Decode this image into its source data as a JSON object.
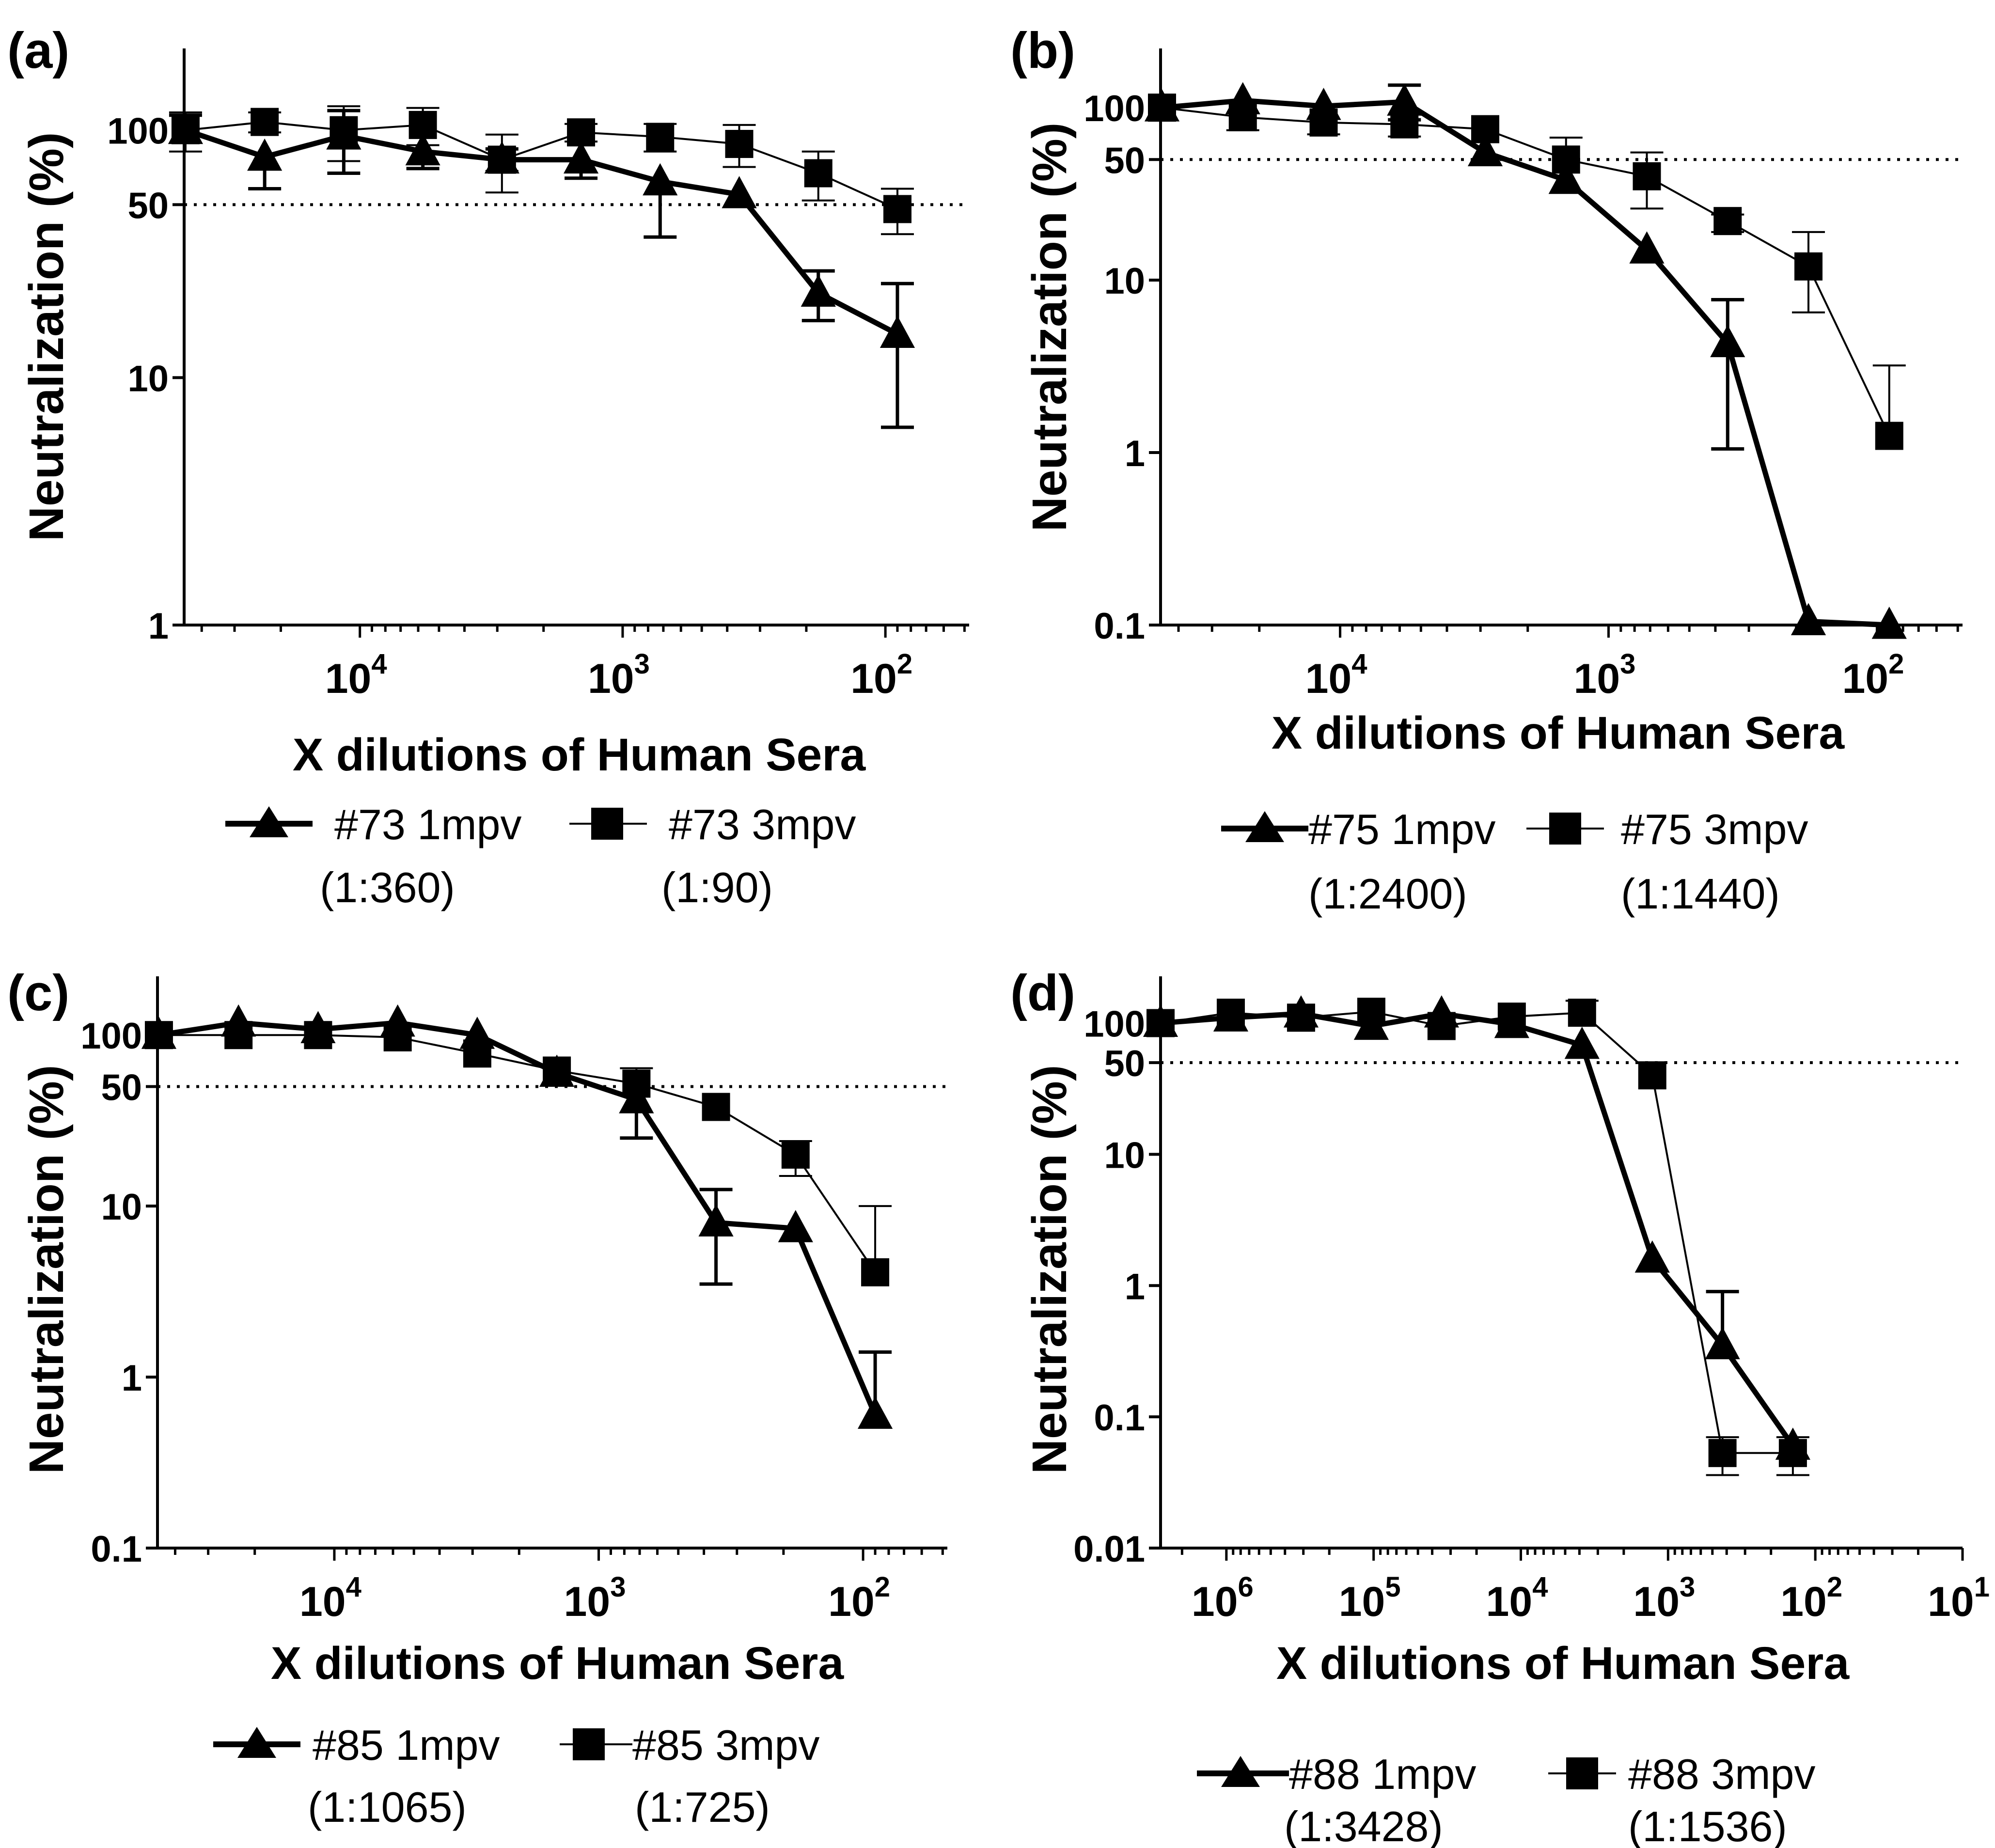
{
  "chart_data": [
    {
      "type": "line",
      "panel_label": "(a)",
      "xscale": "log-reversed",
      "yscale": "log",
      "xlim": [
        46656,
        48
      ],
      "ylim": [
        1,
        200
      ],
      "xticks": [
        {
          "value": 10000,
          "base": "10",
          "exp": "4"
        },
        {
          "value": 1000,
          "base": "10",
          "exp": "3"
        },
        {
          "value": 100,
          "base": "10",
          "exp": "2"
        }
      ],
      "yticks": [
        {
          "value": 1,
          "label": "1"
        },
        {
          "value": 10,
          "label": "10"
        },
        {
          "value": 50,
          "label": "50"
        },
        {
          "value": 100,
          "label": "100"
        }
      ],
      "reference_line": 50,
      "xlabel": "X dilutions of  Human Sera",
      "ylabel": "Neutralization (%)",
      "series": [
        {
          "name": "#73 1mpv",
          "note": "(1:360)",
          "marker": "triangle",
          "line_weight": "thick",
          "x": [
            46080,
            23040,
            11520,
            5760,
            2880,
            1440,
            720,
            360,
            180,
            90
          ],
          "y": [
            100,
            78,
            95,
            82,
            76,
            76,
            62,
            55,
            22,
            15
          ],
          "err": [
            18,
            20,
            28,
            12,
            8,
            12,
            25,
            null,
            5,
            9
          ]
        },
        {
          "name": "#73 3mpv",
          "note": "(1:90)",
          "marker": "square",
          "line_weight": "thin",
          "x": [
            46080,
            23040,
            11520,
            5760,
            2880,
            1440,
            720,
            360,
            180,
            90
          ],
          "y": [
            100,
            108,
            100,
            105,
            76,
            98,
            94,
            88,
            67,
            48
          ],
          "err": [
            18,
            10,
            25,
            18,
            20,
            8,
            12,
            17,
            15,
            10
          ]
        }
      ],
      "error_bar_tip": [
        {
          "series": "#73 1mpv",
          "x": 46080,
          "hi": 115
        },
        {
          "series": "#73 1mpv",
          "x": 23040,
          "lo": 58
        },
        {
          "series": "#73 1mpv",
          "x": 11520,
          "lo": 67,
          "hi": 120
        },
        {
          "series": "#73 1mpv",
          "x": 5760,
          "lo": 70
        },
        {
          "series": "#73 1mpv",
          "x": 1440,
          "lo": 64
        },
        {
          "series": "#73 1mpv",
          "x": 720,
          "lo": 37
        },
        {
          "series": "#73 1mpv",
          "x": 180,
          "lo": 17,
          "hi": 27
        },
        {
          "series": "#73 1mpv",
          "x": 90,
          "lo": 6.3,
          "hi": 24
        }
      ]
    },
    {
      "type": "line",
      "panel_label": "(b)",
      "xscale": "log-reversed",
      "yscale": "log",
      "xlim": [
        46656,
        48
      ],
      "ylim": [
        0.1,
        200
      ],
      "xticks": [
        {
          "value": 10000,
          "base": "10",
          "exp": "4"
        },
        {
          "value": 1000,
          "base": "10",
          "exp": "3"
        },
        {
          "value": 100,
          "base": "10",
          "exp": "2"
        }
      ],
      "yticks": [
        {
          "value": 0.1,
          "label": "0.1"
        },
        {
          "value": 1,
          "label": "1"
        },
        {
          "value": 10,
          "label": "10"
        },
        {
          "value": 50,
          "label": "50"
        },
        {
          "value": 100,
          "label": "100"
        }
      ],
      "reference_line": 50,
      "xlabel": "X dilutions of  Human Sera",
      "ylabel": "Neutralization (%)",
      "series": [
        {
          "name": "#75 1mpv",
          "note": "(1:2400)",
          "marker": "triangle",
          "line_weight": "thick",
          "x": [
            46080,
            23040,
            11520,
            5760,
            2880,
            1440,
            720,
            360,
            180,
            90
          ],
          "y": [
            100,
            110,
            102,
            108,
            55,
            38,
            15,
            4.3,
            0.105,
            0.1
          ]
        },
        {
          "name": "#75 3mpv",
          "note": "(1:1440)",
          "marker": "square",
          "line_weight": "thin",
          "x": [
            46080,
            23040,
            11520,
            5760,
            2880,
            1440,
            720,
            360,
            180,
            90
          ],
          "y": [
            100,
            88,
            82,
            80,
            75,
            50,
            40,
            22,
            12,
            1.25
          ]
        }
      ],
      "error_bars": [
        {
          "series": "#75 1mpv",
          "x": 5760,
          "lo": 85,
          "hi": 135
        },
        {
          "series": "#75 1mpv",
          "x": 360,
          "lo": 1.05,
          "hi": 7.7
        },
        {
          "series": "#75 3mpv",
          "x": 23040,
          "lo": 74
        },
        {
          "series": "#75 3mpv",
          "x": 11520,
          "lo": 70
        },
        {
          "series": "#75 3mpv",
          "x": 5760,
          "lo": 68
        },
        {
          "series": "#75 3mpv",
          "x": 1440,
          "hi": 67
        },
        {
          "series": "#75 3mpv",
          "x": 720,
          "lo": 26,
          "hi": 55
        },
        {
          "series": "#75 3mpv",
          "x": 360,
          "lo": 19,
          "hi": 24
        },
        {
          "series": "#75 3mpv",
          "x": 180,
          "lo": 6.5,
          "hi": 19
        },
        {
          "series": "#75 3mpv",
          "x": 90,
          "hi": 3.2
        }
      ]
    },
    {
      "type": "line",
      "panel_label": "(c)",
      "xscale": "log-reversed",
      "yscale": "log",
      "xlim": [
        46656,
        48
      ],
      "ylim": [
        0.1,
        200
      ],
      "xticks": [
        {
          "value": 10000,
          "base": "10",
          "exp": "4"
        },
        {
          "value": 1000,
          "base": "10",
          "exp": "3"
        },
        {
          "value": 100,
          "base": "10",
          "exp": "2"
        }
      ],
      "yticks": [
        {
          "value": 0.1,
          "label": "0.1"
        },
        {
          "value": 1,
          "label": "1"
        },
        {
          "value": 10,
          "label": "10"
        },
        {
          "value": 50,
          "label": "50"
        },
        {
          "value": 100,
          "label": "100"
        }
      ],
      "reference_line": 50,
      "xlabel": "X dilutions of  Human Sera",
      "ylabel": "Neutralization (%)",
      "series": [
        {
          "name": "#85 1mpv",
          "note": "(1:1065)",
          "marker": "triangle",
          "line_weight": "thick",
          "x": [
            46080,
            23040,
            11520,
            5760,
            2880,
            1440,
            720,
            360,
            180,
            90
          ],
          "y": [
            100,
            118,
            108,
            118,
            100,
            60,
            42,
            8,
            7.4,
            0.6
          ]
        },
        {
          "name": "#85 3mpv",
          "note": "(1:725)",
          "marker": "square",
          "line_weight": "thin",
          "x": [
            46080,
            23040,
            11520,
            5760,
            2880,
            1440,
            720,
            360,
            180,
            90
          ],
          "y": [
            100,
            100,
            100,
            97,
            78,
            62,
            52,
            38,
            20,
            4.1
          ]
        }
      ],
      "error_bars": [
        {
          "series": "#85 1mpv",
          "x": 720,
          "lo": 25
        },
        {
          "series": "#85 1mpv",
          "x": 360,
          "lo": 3.5,
          "hi": 12.5
        },
        {
          "series": "#85 1mpv",
          "x": 90,
          "hi": 1.4
        },
        {
          "series": "#85 3mpv",
          "x": 720,
          "hi": 64
        },
        {
          "series": "#85 3mpv",
          "x": 180,
          "lo": 15,
          "hi": 24
        },
        {
          "series": "#85 3mpv",
          "x": 90,
          "hi": 10
        }
      ]
    },
    {
      "type": "line",
      "panel_label": "(d)",
      "xscale": "log-reversed",
      "yscale": "log",
      "xlim": [
        2799360,
        10
      ],
      "ylim": [
        0.01,
        200
      ],
      "xticks": [
        {
          "value": 1000000,
          "base": "10",
          "exp": "6"
        },
        {
          "value": 100000,
          "base": "10",
          "exp": "5"
        },
        {
          "value": 10000,
          "base": "10",
          "exp": "4"
        },
        {
          "value": 1000,
          "base": "10",
          "exp": "3"
        },
        {
          "value": 100,
          "base": "10",
          "exp": "2"
        },
        {
          "value": 10,
          "base": "10",
          "exp": "1"
        }
      ],
      "yticks": [
        {
          "value": 0.01,
          "label": "0.01"
        },
        {
          "value": 0.1,
          "label": "0.1"
        },
        {
          "value": 1,
          "label": "1"
        },
        {
          "value": 10,
          "label": "10"
        },
        {
          "value": 50,
          "label": "50"
        },
        {
          "value": 100,
          "label": "100"
        }
      ],
      "reference_line": 50,
      "xlabel": "X dilutions of  Human Sera",
      "ylabel": "Neutralization (%)",
      "series": [
        {
          "name": "#88 1mpv",
          "note": "(1:3428)",
          "marker": "triangle",
          "line_weight": "thick",
          "x": [
            2799360,
            933120,
            311040,
            103680,
            34560,
            11520,
            3840,
            1280,
            427,
            142
          ],
          "y": [
            100,
            110,
            118,
            95,
            118,
            98,
            68,
            1.6,
            0.35,
            0.06
          ]
        },
        {
          "name": "#88 3mpv",
          "note": "(1:1536)",
          "marker": "square",
          "line_weight": "thin",
          "x": [
            2799360,
            933120,
            311040,
            103680,
            34560,
            11520,
            3840,
            1280,
            427,
            142
          ],
          "y": [
            100,
            120,
            110,
            122,
            95,
            112,
            120,
            40,
            0.053,
            0.053
          ]
        }
      ],
      "error_bars": [
        {
          "series": "#88 1mpv",
          "x": 427,
          "hi": 0.9
        },
        {
          "series": "#88 3mpv",
          "x": 3840,
          "hi": 148
        },
        {
          "series": "#88 3mpv",
          "x": 427,
          "lo": 0.036,
          "hi": 0.07
        },
        {
          "series": "#88 3mpv",
          "x": 142,
          "lo": 0.036,
          "hi": 0.07
        }
      ]
    }
  ]
}
